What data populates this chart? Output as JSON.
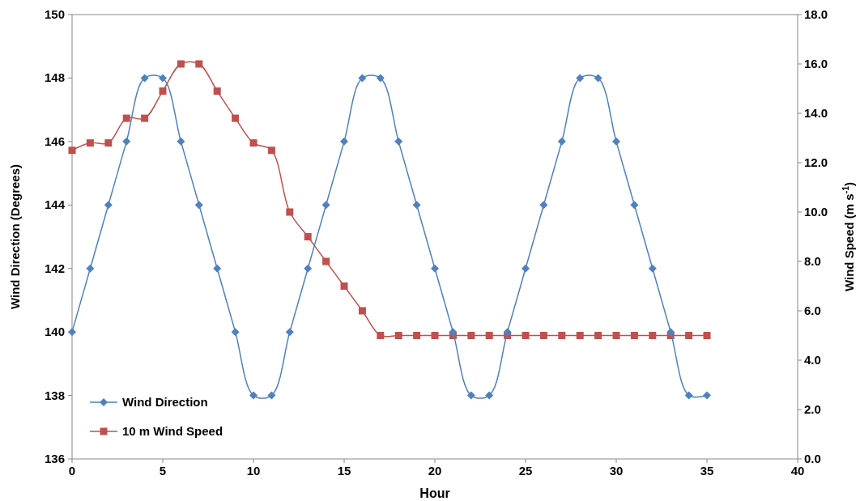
{
  "chart_data": {
    "type": "line",
    "xlabel": "Hour",
    "ylabel": "Wind Direction (Degrees)",
    "y2label": "Wind Speed (m s$^{-1}$)",
    "x": [
      0,
      1,
      2,
      3,
      4,
      5,
      6,
      7,
      8,
      9,
      10,
      11,
      12,
      13,
      14,
      15,
      16,
      17,
      18,
      19,
      20,
      21,
      22,
      23,
      24,
      25,
      26,
      27,
      28,
      29,
      30,
      31,
      32,
      33,
      34,
      35
    ],
    "series": [
      {
        "name": "Wind Direction",
        "color": "#4f81bd",
        "marker": "diamond",
        "values": [
          140,
          142,
          144,
          146,
          148,
          148,
          146,
          144,
          142,
          140,
          138,
          138,
          140,
          142,
          144,
          146,
          148,
          148,
          146,
          144,
          142,
          140,
          138,
          138,
          140,
          142,
          144,
          146,
          148,
          148,
          146,
          144,
          142,
          140,
          138,
          138
        ]
      },
      {
        "name": "10 m Wind Speed",
        "color": "#c0504d",
        "marker": "square",
        "axis": "y2",
        "values": [
          12.5,
          12.8,
          12.8,
          13.8,
          13.8,
          14.9,
          16.0,
          16.0,
          14.9,
          13.8,
          12.8,
          12.5,
          10.0,
          9.0,
          8.0,
          7.0,
          6.0,
          5.0,
          5.0,
          5.0,
          5.0,
          5.0,
          5.0,
          5.0,
          5.0,
          5.0,
          5.0,
          5.0,
          5.0,
          5.0,
          5.0,
          5.0,
          5.0,
          5.0,
          5.0,
          5.0
        ]
      }
    ],
    "xlim": [
      0,
      40
    ],
    "xticks": [
      0,
      5,
      10,
      15,
      20,
      25,
      30,
      35,
      40
    ],
    "ylim": [
      136,
      150
    ],
    "yticks": [
      136,
      138,
      140,
      142,
      144,
      146,
      148,
      150
    ],
    "y2lim": [
      0,
      18
    ],
    "y2ticks": [
      {
        "value": 0,
        "label": "0.0"
      },
      {
        "value": 2,
        "label": "2.0"
      },
      {
        "value": 4,
        "label": "4.0"
      },
      {
        "value": 6,
        "label": "6.0"
      },
      {
        "value": 8,
        "label": "8.0"
      },
      {
        "value": 10,
        "label": "10.0"
      },
      {
        "value": 12,
        "label": "12.0"
      },
      {
        "value": 14,
        "label": "14.0"
      },
      {
        "value": 16,
        "label": "16.0"
      },
      {
        "value": 18,
        "label": "18.0"
      }
    ],
    "grid": false,
    "legend": "bottom left",
    "line_style": "solid"
  }
}
